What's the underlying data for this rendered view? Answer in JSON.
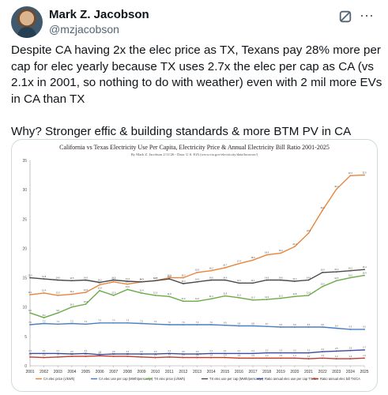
{
  "author": {
    "name": "Mark Z. Jacobson",
    "handle": "@mzjacobson"
  },
  "icons": {
    "avatar": "profile-photo",
    "grok": "grok-icon",
    "more": "more-options-icon"
  },
  "tweet": {
    "text": "Despite CA having 2x the elec price as TX, Texans pay 28% more per cap for elec yearly because TX uses 2.7x the elec per cap as CA (vs 2.1x in 2001, so nothing to do with weather) even with 2 mil more EVs in CA than TX\n\nWhy? Stronger effic & building standards & more BTM PV in CA"
  },
  "chart_data": {
    "type": "line",
    "title": "California vs Texas Electricity Use Per Capita, Electricity Price & Annual Electricity Bill Ratio 2001-2025",
    "subtitle": "By Mark Z. Jacobson 2/11/26 - Data: U.S. EIA (www.eia.gov/electricity/data/browser/)",
    "x": [
      2001,
      2002,
      2003,
      2004,
      2005,
      2006,
      2007,
      2008,
      2009,
      2010,
      2011,
      2012,
      2013,
      2014,
      2015,
      2016,
      2017,
      2018,
      2019,
      2020,
      2021,
      2022,
      2023,
      2024,
      2025
    ],
    "ylim": [
      0,
      35
    ],
    "yticks": [
      0,
      5,
      10,
      15,
      20,
      25,
      30,
      35
    ],
    "grid": false,
    "legend_position": "bottom",
    "series": [
      {
        "name": "CA elec price (c/kWh)",
        "color": "#e8843a",
        "values": [
          12.1,
          12.4,
          12.0,
          12.2,
          12.5,
          13.8,
          14.3,
          13.9,
          14.3,
          14.5,
          15.0,
          15.0,
          15.9,
          16.2,
          16.7,
          17.4,
          18.0,
          18.9,
          19.2,
          20.3,
          22.6,
          26.5,
          30.1,
          32.4,
          32.5
        ]
      },
      {
        "name": "CA elec use per cap (MWh/person/yr)",
        "color": "#4a7fc1",
        "values": [
          7.0,
          7.2,
          7.1,
          7.2,
          7.1,
          7.3,
          7.3,
          7.3,
          7.2,
          7.1,
          7.0,
          7.0,
          7.0,
          7.0,
          6.9,
          6.8,
          6.8,
          6.7,
          6.6,
          6.6,
          6.6,
          6.6,
          6.4,
          6.2,
          6.2
        ]
      },
      {
        "name": "TX elec price (c/kWh)",
        "color": "#6aab45",
        "values": [
          9.0,
          8.2,
          9.0,
          10.0,
          10.5,
          12.8,
          12.0,
          13.0,
          12.4,
          12.0,
          11.8,
          11.0,
          11.0,
          11.4,
          11.9,
          11.6,
          11.2,
          11.3,
          11.5,
          11.8,
          12.0,
          13.5,
          14.5,
          15.0,
          15.4
        ]
      },
      {
        "name": "TX elec use per cap (MWh/person/yr)",
        "color": "#4a4a4a",
        "values": [
          15.0,
          14.8,
          14.6,
          14.5,
          14.6,
          14.2,
          14.6,
          14.4,
          14.3,
          14.5,
          14.8,
          14.0,
          14.3,
          14.6,
          14.6,
          14.1,
          14.1,
          14.6,
          14.6,
          14.4,
          14.6,
          15.9,
          16.0,
          16.2,
          16.4
        ]
      },
      {
        "name": "Ratio annual elec use per cap TX/CA",
        "color": "#3b4a9a",
        "values": [
          2.1,
          2.1,
          2.1,
          2.0,
          2.1,
          1.9,
          2.0,
          2.0,
          2.0,
          2.0,
          2.1,
          2.0,
          2.0,
          2.1,
          2.1,
          2.1,
          2.1,
          2.2,
          2.2,
          2.2,
          2.2,
          2.4,
          2.5,
          2.6,
          2.7
        ]
      },
      {
        "name": "Ratio annual elec bill TX/CA",
        "color": "#c0392b",
        "values": [
          1.5,
          1.4,
          1.5,
          1.6,
          1.6,
          1.7,
          1.6,
          1.6,
          1.5,
          1.4,
          1.5,
          1.4,
          1.4,
          1.4,
          1.4,
          1.3,
          1.3,
          1.3,
          1.3,
          1.3,
          1.2,
          1.3,
          1.2,
          1.2,
          1.3
        ]
      }
    ]
  }
}
